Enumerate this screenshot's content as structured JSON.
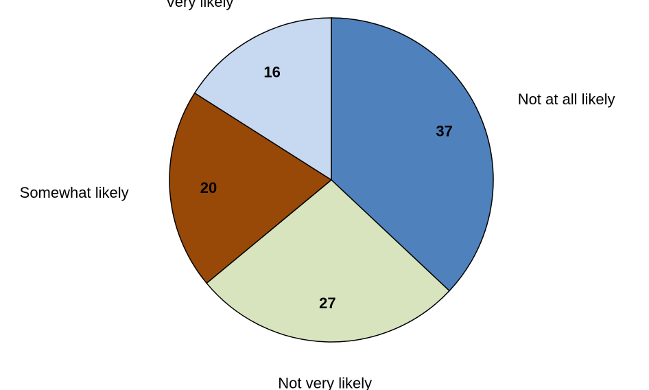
{
  "chart_data": {
    "type": "pie",
    "title": "",
    "start_angle_deg": 0,
    "direction": "clockwise",
    "slices": [
      {
        "label": "Not at all likely",
        "value": 37,
        "color": "#4F81BD"
      },
      {
        "label": "Not very likely",
        "value": 27,
        "color": "#D7E4BD"
      },
      {
        "label": "Somewhat likely",
        "value": 20,
        "color": "#984807"
      },
      {
        "label": "Very likely",
        "value": 16,
        "color": "#C6D9F1"
      }
    ],
    "data_labels": "value",
    "legend": "none"
  }
}
